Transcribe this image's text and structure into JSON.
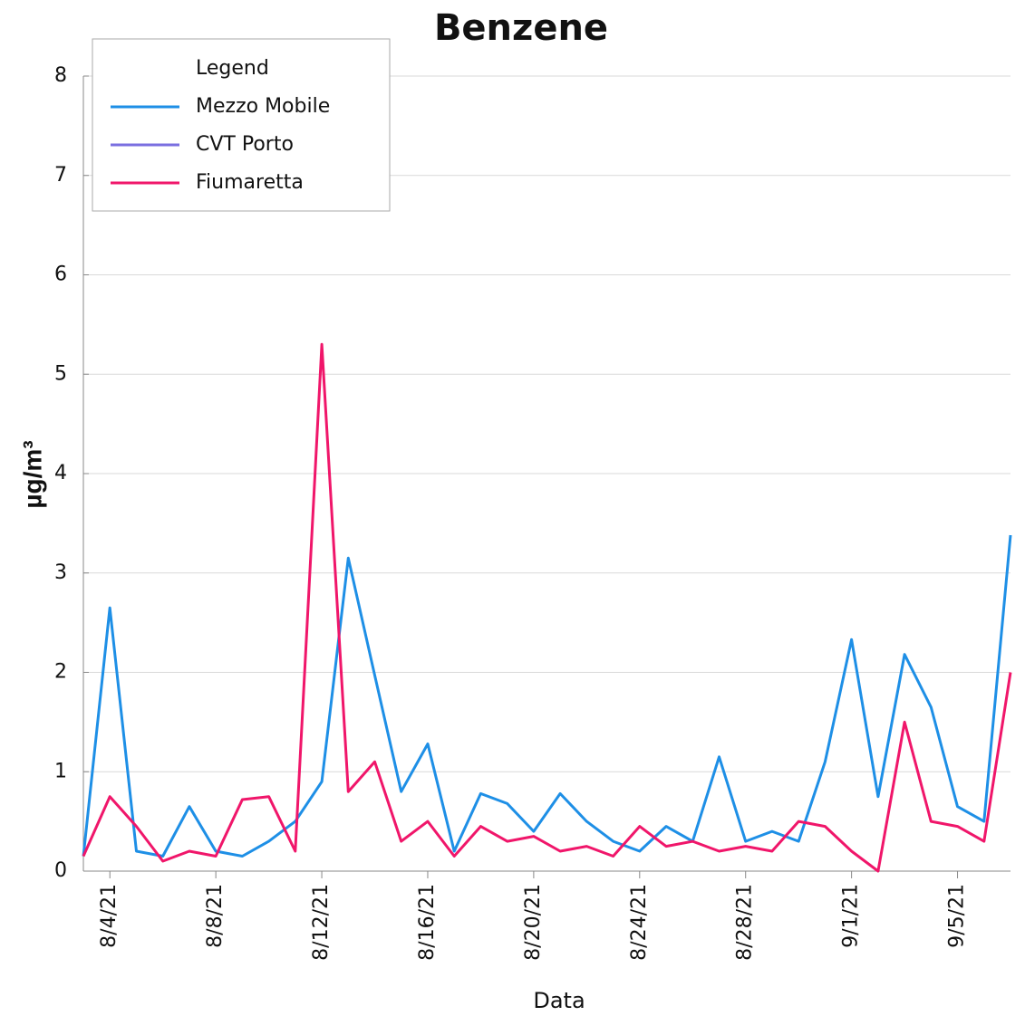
{
  "chart_data": {
    "type": "line",
    "title": "Benzene",
    "x_label": "Data",
    "y_label": "µg/m³",
    "legend_title": "Legend",
    "legend": "upper left",
    "grid": true,
    "x": [
      "2021-08-03",
      "2021-08-04",
      "2021-08-05",
      "2021-08-06",
      "2021-08-07",
      "2021-08-08",
      "2021-08-09",
      "2021-08-10",
      "2021-08-11",
      "2021-08-12",
      "2021-08-13",
      "2021-08-14",
      "2021-08-15",
      "2021-08-16",
      "2021-08-17",
      "2021-08-18",
      "2021-08-19",
      "2021-08-20",
      "2021-08-21",
      "2021-08-22",
      "2021-08-23",
      "2021-08-24",
      "2021-08-25",
      "2021-08-26",
      "2021-08-27",
      "2021-08-28",
      "2021-08-29",
      "2021-08-30",
      "2021-08-31",
      "2021-09-01",
      "2021-09-02",
      "2021-09-03",
      "2021-09-04",
      "2021-09-05",
      "2021-09-06",
      "2021-09-07"
    ],
    "xlim": [
      "2021-08-03",
      "2021-09-07"
    ],
    "xticks": [
      {
        "value": "2021-08-04",
        "label": "8/4/21"
      },
      {
        "value": "2021-08-08",
        "label": "8/8/21"
      },
      {
        "value": "2021-08-12",
        "label": "8/12/21"
      },
      {
        "value": "2021-08-16",
        "label": "8/16/21"
      },
      {
        "value": "2021-08-20",
        "label": "8/20/21"
      },
      {
        "value": "2021-08-24",
        "label": "8/24/21"
      },
      {
        "value": "2021-08-28",
        "label": "8/28/21"
      },
      {
        "value": "2021-09-01",
        "label": "9/1/21"
      },
      {
        "value": "2021-09-05",
        "label": "9/5/21"
      }
    ],
    "ylim": [
      0,
      8
    ],
    "yticks": [
      0,
      1,
      2,
      3,
      4,
      5,
      6,
      7,
      8
    ],
    "series": [
      {
        "name": "Mezzo Mobile",
        "color": "#1e8fe6",
        "values": [
          0.15,
          2.65,
          0.2,
          0.15,
          0.65,
          0.2,
          0.15,
          0.3,
          0.5,
          0.9,
          3.15,
          1.97,
          0.8,
          1.28,
          0.2,
          0.78,
          0.68,
          0.4,
          0.78,
          0.5,
          0.3,
          0.2,
          0.45,
          0.3,
          1.15,
          0.3,
          0.4,
          0.3,
          1.1,
          2.33,
          0.75,
          2.18,
          1.65,
          0.65,
          0.5,
          3.38
        ]
      },
      {
        "name": "CVT Porto",
        "color": "#7a6fe0",
        "values": [
          null,
          null,
          null,
          null,
          null,
          null,
          null,
          null,
          null,
          null,
          null,
          null,
          null,
          null,
          null,
          null,
          null,
          null,
          null,
          null,
          null,
          null,
          null,
          null,
          null,
          null,
          null,
          null,
          null,
          null,
          null,
          null,
          null,
          null,
          null,
          null
        ]
      },
      {
        "name": "Fiumaretta",
        "color": "#f0166a",
        "values": [
          0.15,
          0.75,
          0.45,
          0.1,
          0.2,
          0.15,
          0.72,
          0.75,
          0.2,
          5.3,
          0.8,
          1.1,
          0.3,
          0.5,
          0.15,
          0.45,
          0.3,
          0.35,
          0.2,
          0.25,
          0.15,
          0.45,
          0.25,
          0.3,
          0.2,
          0.25,
          0.2,
          0.5,
          0.45,
          0.2,
          0,
          1.5,
          0.5,
          0.45,
          0.3,
          2.0
        ]
      }
    ]
  }
}
